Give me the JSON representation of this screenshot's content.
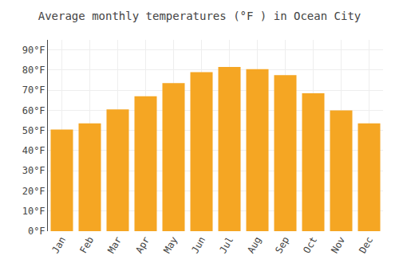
{
  "chart_data": {
    "type": "bar",
    "title": "Average monthly temperatures (°F ) in Ocean City",
    "categories": [
      "Jan",
      "Feb",
      "Mar",
      "Apr",
      "May",
      "Jun",
      "Jul",
      "Aug",
      "Sep",
      "Oct",
      "Nov",
      "Dec"
    ],
    "values": [
      50.5,
      53.5,
      60.5,
      67.0,
      73.5,
      79.0,
      81.5,
      80.5,
      77.5,
      68.5,
      60.0,
      53.5
    ],
    "color": "#F5A623",
    "ylim": [
      0,
      95
    ],
    "yticks": [
      {
        "value": 0,
        "label": "0°F"
      },
      {
        "value": 10,
        "label": "10°F"
      },
      {
        "value": 20,
        "label": "20°F"
      },
      {
        "value": 30,
        "label": "30°F"
      },
      {
        "value": 40,
        "label": "40°F"
      },
      {
        "value": 50,
        "label": "50°F"
      },
      {
        "value": 60,
        "label": "60°F"
      },
      {
        "value": 70,
        "label": "70°F"
      },
      {
        "value": 80,
        "label": "80°F"
      },
      {
        "value": 90,
        "label": "90°F"
      }
    ],
    "grid": true
  }
}
